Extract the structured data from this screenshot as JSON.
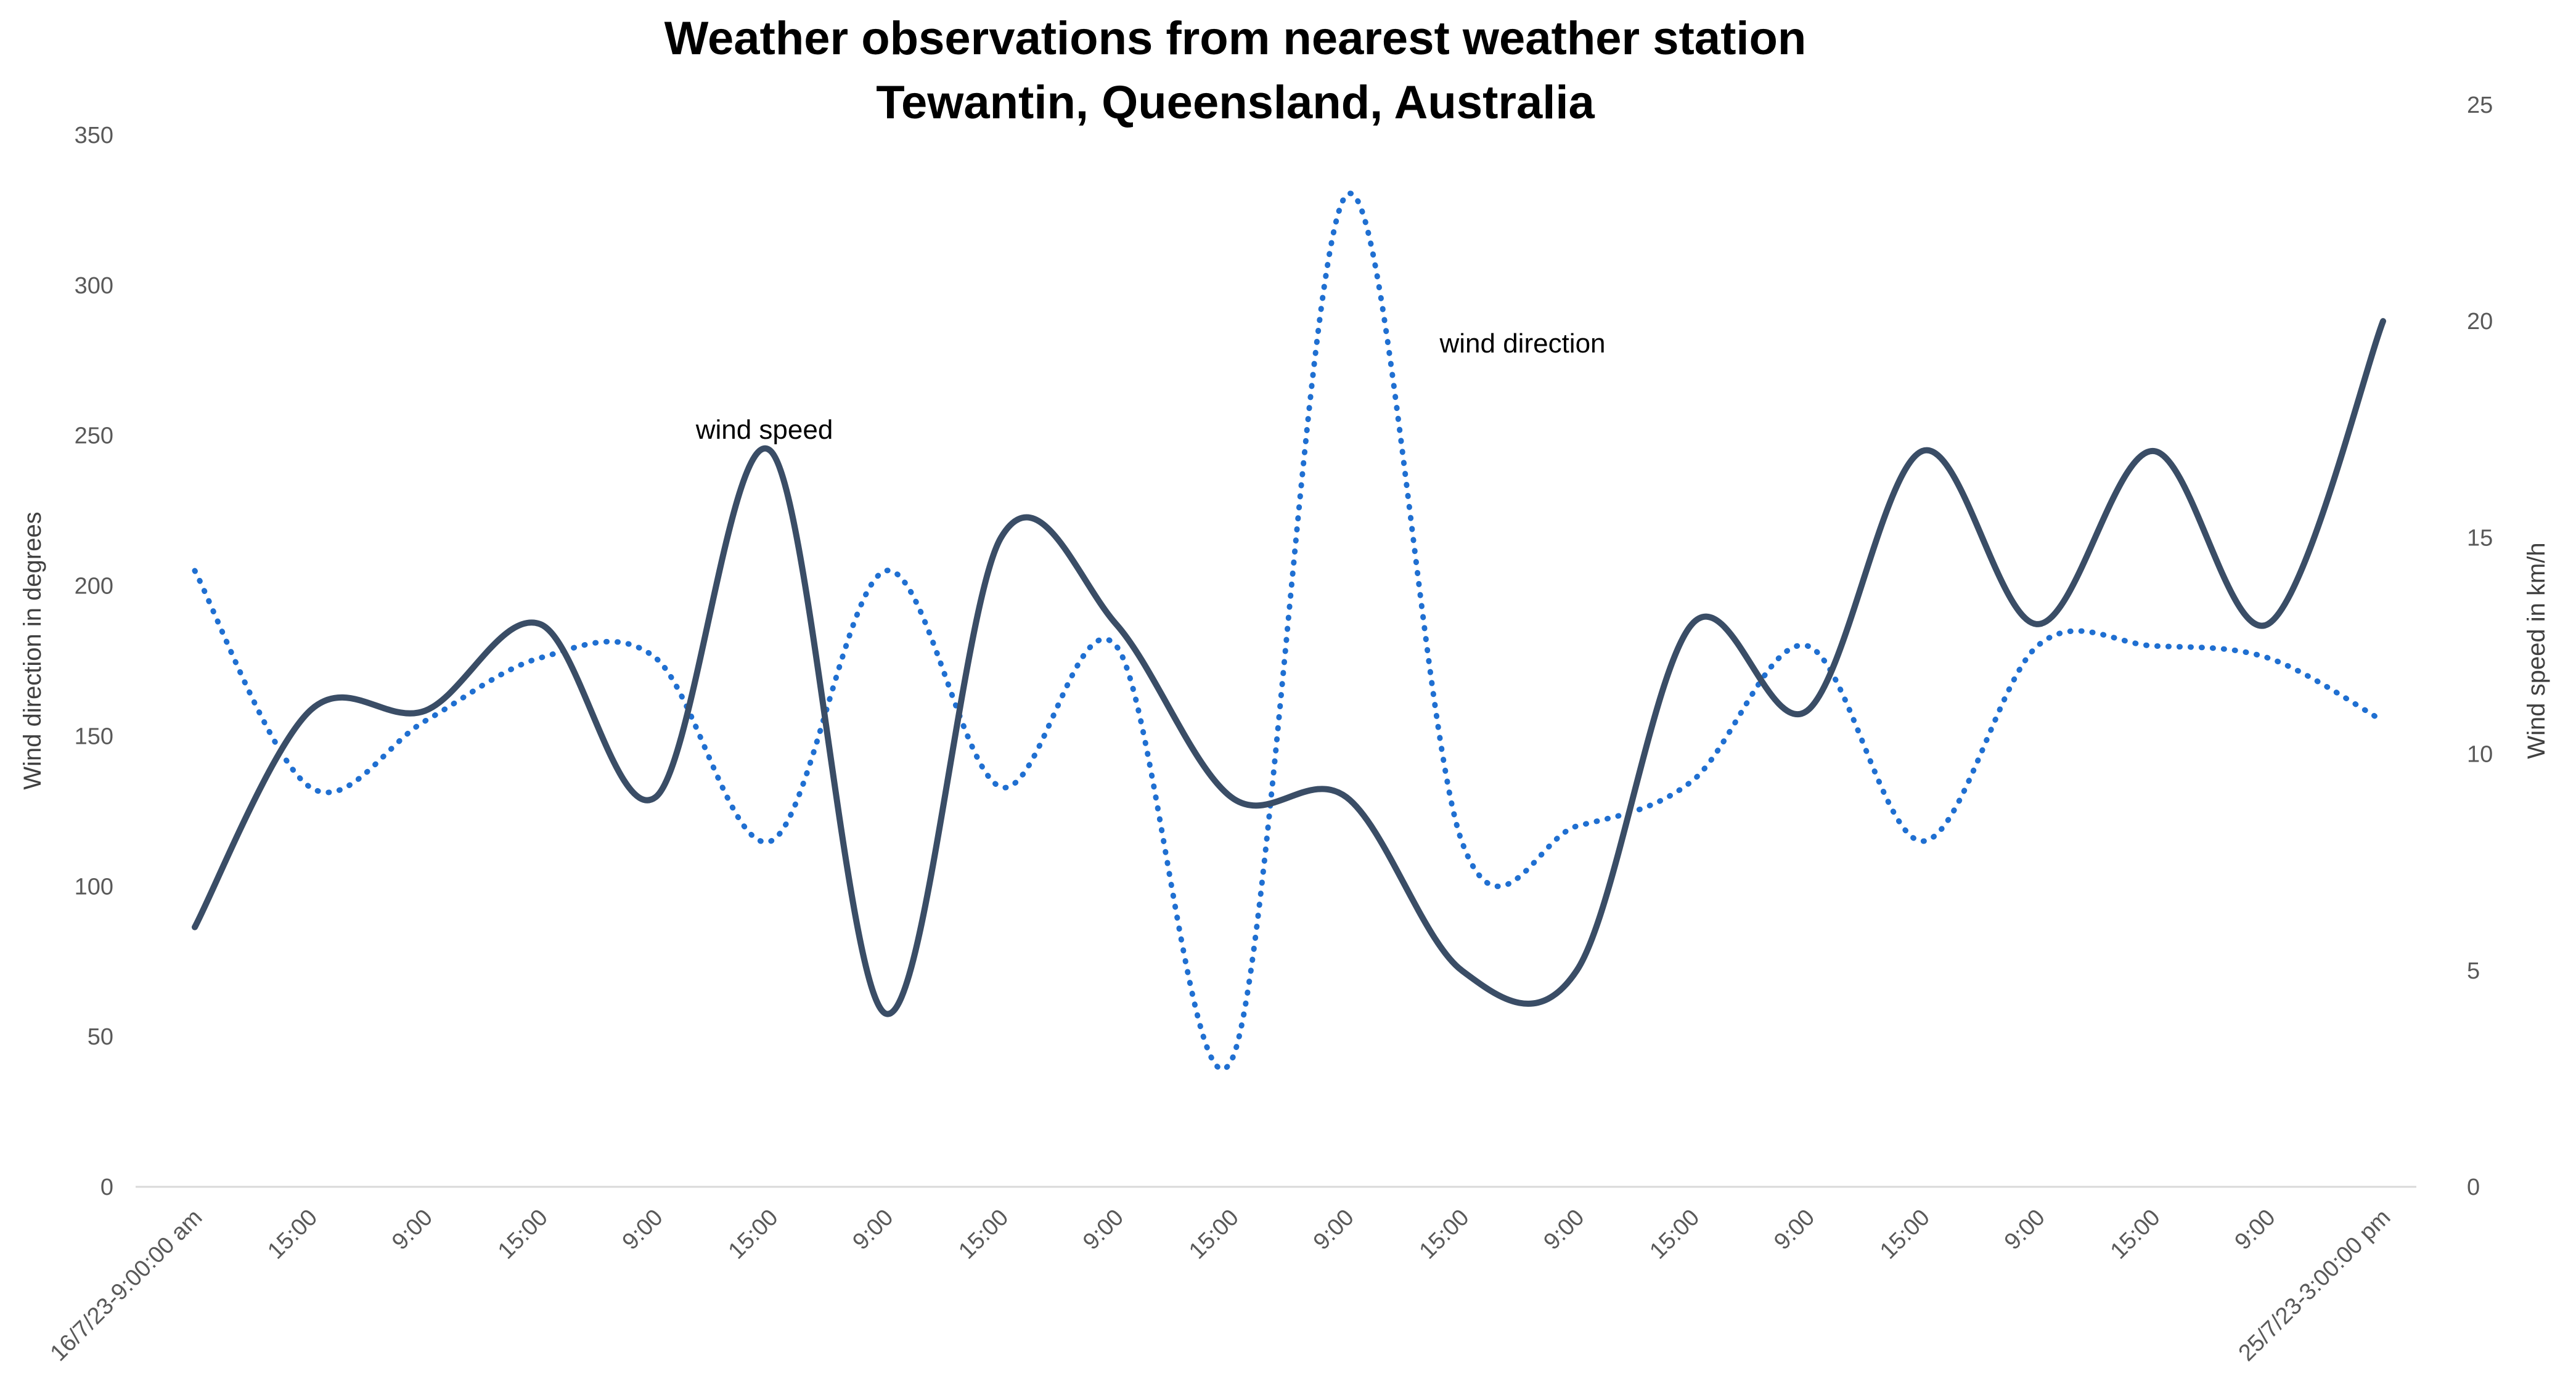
{
  "chart_data": {
    "type": "line",
    "title": [
      "Weather observations from nearest weather station",
      "Tewantin, Queensland, Australia"
    ],
    "categories": [
      "16/7/23-9:00:00 am",
      "15:00",
      "9:00",
      "15:00",
      "9:00",
      "15:00",
      "9:00",
      "15:00",
      "9:00",
      "15:00",
      "9:00",
      "15:00",
      "9:00",
      "15:00",
      "9:00",
      "15:00",
      "9:00",
      "15:00",
      "9:00",
      "25/7/23-3:00:00 pm"
    ],
    "y_left": {
      "label": "Wind direction in degrees",
      "min": 0,
      "max": 350,
      "ticks": [
        "0",
        "50",
        "100",
        "150",
        "200",
        "250",
        "300",
        "350"
      ]
    },
    "y_right": {
      "label": "Wind speed in km/h",
      "min": 0,
      "max": 25,
      "ticks": [
        "0",
        "5",
        "10",
        "15",
        "20",
        "25"
      ]
    },
    "series": [
      {
        "name": "wind speed",
        "axis": "right",
        "style": "solid",
        "color": "#3a4d66",
        "values": [
          6,
          11,
          11,
          13,
          9,
          17,
          4,
          15,
          13,
          9,
          9,
          5,
          5,
          13,
          11,
          17,
          13,
          17,
          13,
          20
        ]
      },
      {
        "name": "wind direction",
        "axis": "left",
        "style": "dotted",
        "color": "#1f6fd1",
        "values": [
          205,
          133,
          155,
          176,
          176,
          115,
          205,
          133,
          180,
          42,
          330,
          115,
          120,
          135,
          180,
          115,
          180,
          180,
          176,
          155
        ]
      }
    ],
    "annotations": [
      {
        "text": "wind speed",
        "series": "wind speed"
      },
      {
        "text": "wind direction",
        "series": "wind direction"
      }
    ]
  }
}
